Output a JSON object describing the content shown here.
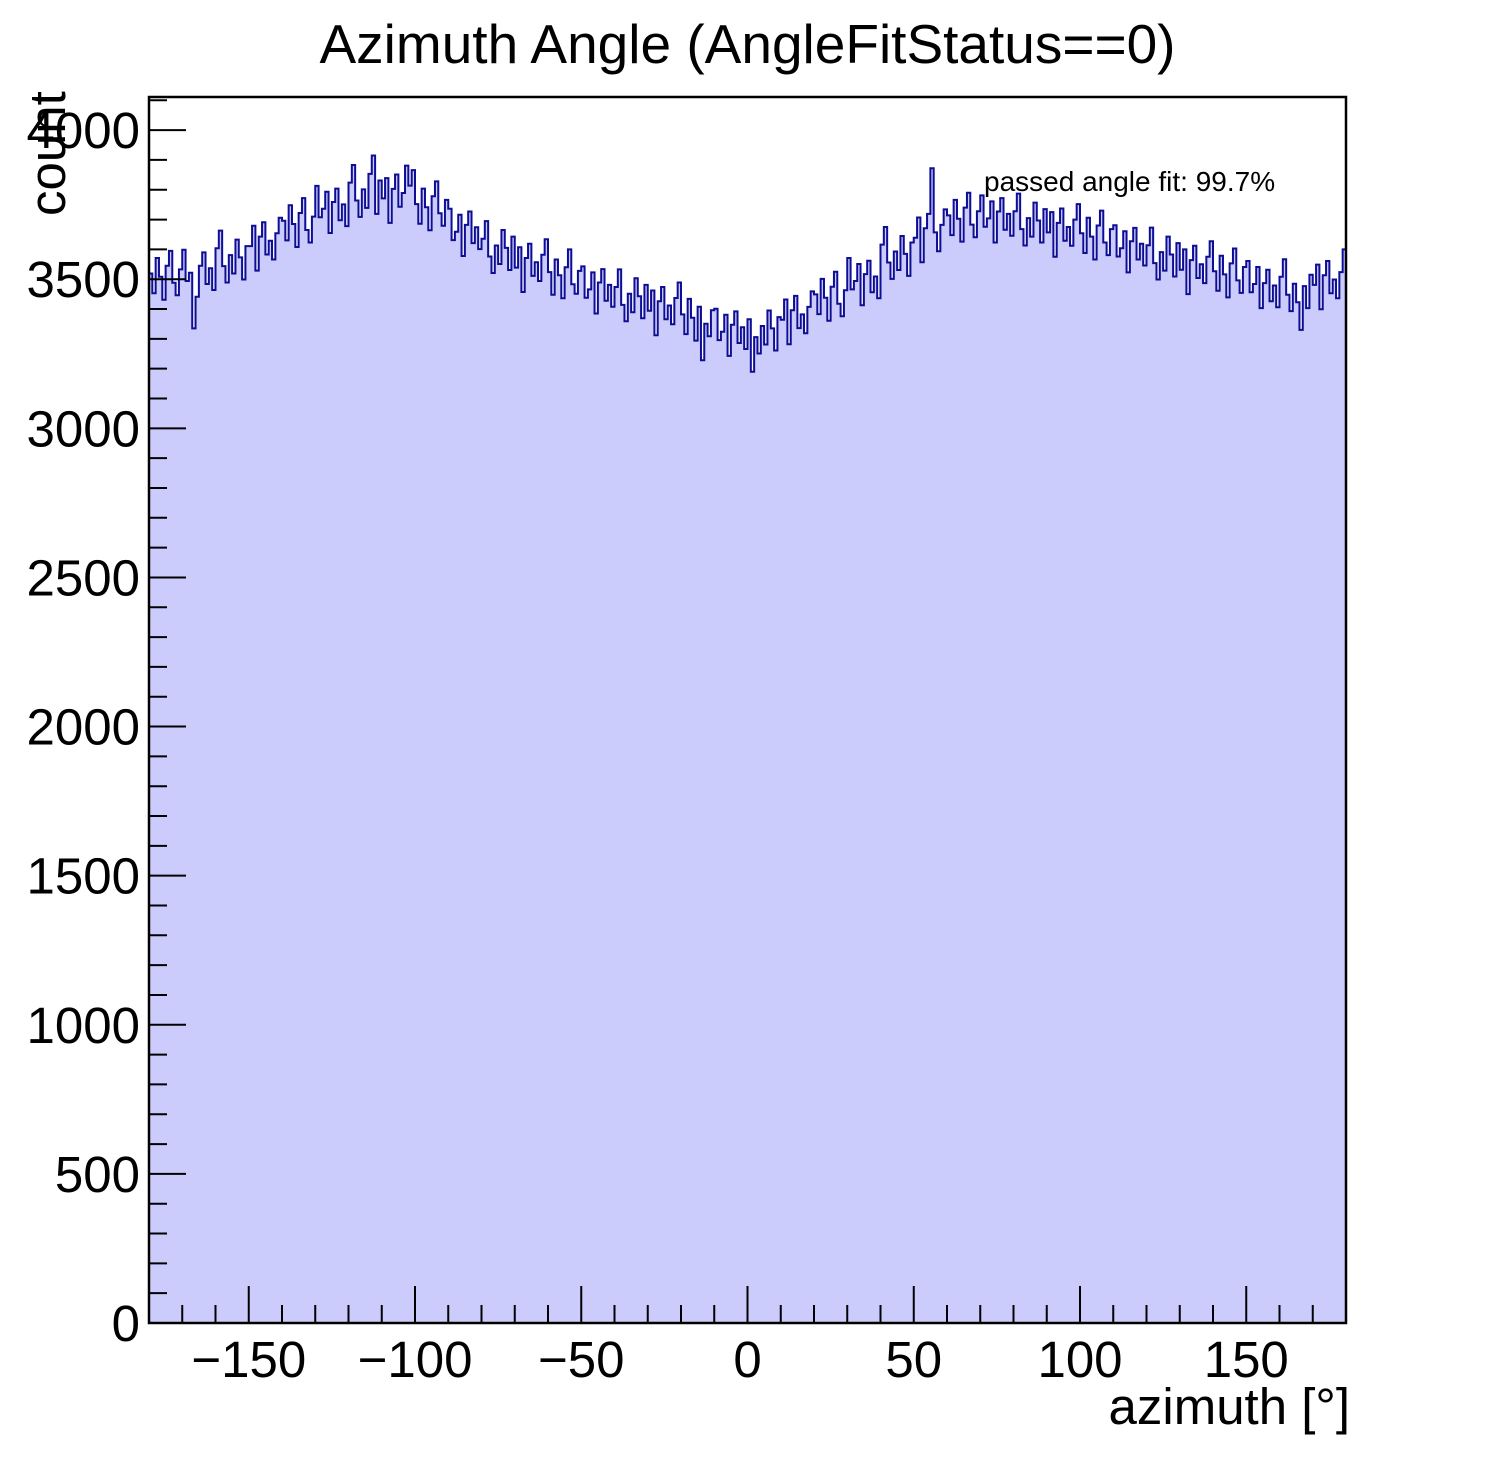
{
  "chart_data": {
    "type": "bar",
    "subtype": "histogram-step-filled",
    "title": "Azimuth Angle (AngleFitStatus==0)",
    "xlabel": "azimuth [°]",
    "ylabel": "count",
    "annotation": "passed angle fit: 99.7%",
    "xlim": [
      -180,
      180
    ],
    "ylim": [
      0,
      4111
    ],
    "grid": false,
    "legend_position": "top-right-inside",
    "bin_start": -180,
    "bin_width": 1,
    "colors": {
      "fill": "#ccccfc",
      "line": "#0d0d96",
      "axis": "#000000",
      "text": "#000000"
    },
    "x_ticks": {
      "values": [
        -150,
        -100,
        -50,
        0,
        50,
        100,
        150
      ],
      "labels": [
        "−150",
        "−100",
        "−50",
        "0",
        "50",
        "100",
        "150"
      ],
      "minor_step": 10
    },
    "y_ticks": {
      "values": [
        0,
        500,
        1000,
        1500,
        2000,
        2500,
        3000,
        3500,
        4000
      ],
      "labels": [
        "0",
        "500",
        "1000",
        "1500",
        "2000",
        "2500",
        "3000",
        "3500",
        "4000"
      ],
      "minor_step": 100
    },
    "counts": [
      3519,
      3453,
      3571,
      3508,
      3431,
      3545,
      3595,
      3488,
      3446,
      3533,
      3599,
      3494,
      3522,
      3335,
      3441,
      3545,
      3590,
      3484,
      3537,
      3464,
      3604,
      3663,
      3544,
      3489,
      3581,
      3519,
      3633,
      3573,
      3499,
      3611,
      3611,
      3679,
      3529,
      3643,
      3691,
      3583,
      3629,
      3566,
      3654,
      3706,
      3696,
      3630,
      3748,
      3685,
      3608,
      3722,
      3772,
      3665,
      3623,
      3710,
      3813,
      3708,
      3736,
      3793,
      3655,
      3759,
      3804,
      3698,
      3751,
      3678,
      3824,
      3883,
      3764,
      3709,
      3801,
      3739,
      3853,
      3915,
      3719,
      3831,
      3771,
      3839,
      3689,
      3803,
      3851,
      3743,
      3789,
      3881,
      3814,
      3866,
      3752,
      3686,
      3804,
      3741,
      3664,
      3778,
      3828,
      3721,
      3679,
      3766,
      3736,
      3631,
      3659,
      3716,
      3578,
      3682,
      3727,
      3621,
      3674,
      3601,
      3636,
      3695,
      3576,
      3521,
      3613,
      3551,
      3665,
      3605,
      3531,
      3643,
      3539,
      3607,
      3457,
      3571,
      3619,
      3511,
      3557,
      3494,
      3582,
      3634,
      3524,
      3448,
      3566,
      3513,
      3436,
      3540,
      3600,
      3483,
      3451,
      3528,
      3543,
      3438,
      3466,
      3523,
      3385,
      3489,
      3534,
      3428,
      3481,
      3408,
      3474,
      3533,
      3414,
      3359,
      3451,
      3389,
      3503,
      3443,
      3369,
      3481,
      3394,
      3462,
      3312,
      3426,
      3474,
      3366,
      3412,
      3349,
      3437,
      3489,
      3382,
      3316,
      3434,
      3371,
      3294,
      3408,
      3228,
      3351,
      3309,
      3396,
      3401,
      3296,
      3324,
      3381,
      3243,
      3347,
      3392,
      3286,
      3339,
      3266,
      3366,
      3190,
      3306,
      3251,
      3343,
      3281,
      3395,
      3335,
      3261,
      3373,
      3364,
      3432,
      3282,
      3396,
      3444,
      3336,
      3382,
      3319,
      3407,
      3459,
      3449,
      3383,
      3501,
      3438,
      3361,
      3475,
      3525,
      3418,
      3376,
      3463,
      3571,
      3466,
      3494,
      3551,
      3413,
      3517,
      3562,
      3456,
      3509,
      3436,
      3616,
      3675,
      3556,
      3501,
      3593,
      3531,
      3645,
      3585,
      3511,
      3623,
      3639,
      3707,
      3557,
      3671,
      3719,
      3872,
      3657,
      3594,
      3682,
      3734,
      3714,
      3648,
      3766,
      3703,
      3626,
      3740,
      3790,
      3683,
      3641,
      3728,
      3781,
      3676,
      3704,
      3761,
      3623,
      3727,
      3772,
      3666,
      3719,
      3646,
      3728,
      3787,
      3668,
      3613,
      3705,
      3643,
      3757,
      3697,
      3623,
      3735,
      3657,
      3725,
      3575,
      3689,
      3737,
      3629,
      3675,
      3612,
      3700,
      3752,
      3654,
      3588,
      3706,
      3643,
      3566,
      3680,
      3730,
      3623,
      3581,
      3668,
      3681,
      3576,
      3604,
      3661,
      3523,
      3627,
      3672,
      3566,
      3619,
      3546,
      3614,
      3673,
      3554,
      3499,
      3591,
      3529,
      3643,
      3583,
      3509,
      3621,
      3532,
      3600,
      3450,
      3564,
      3612,
      3504,
      3550,
      3487,
      3575,
      3627,
      3527,
      3461,
      3579,
      3516,
      3439,
      3553,
      3603,
      3496,
      3454,
      3541,
      3561,
      3456,
      3484,
      3541,
      3403,
      3487,
      3532,
      3426,
      3479,
      3406,
      3508,
      3567,
      3448,
      3393,
      3485,
      3423,
      3330,
      3477,
      3403,
      3515,
      3481,
      3549,
      3399,
      3513,
      3561,
      3453,
      3499,
      3436,
      3524,
      3600
    ]
  }
}
